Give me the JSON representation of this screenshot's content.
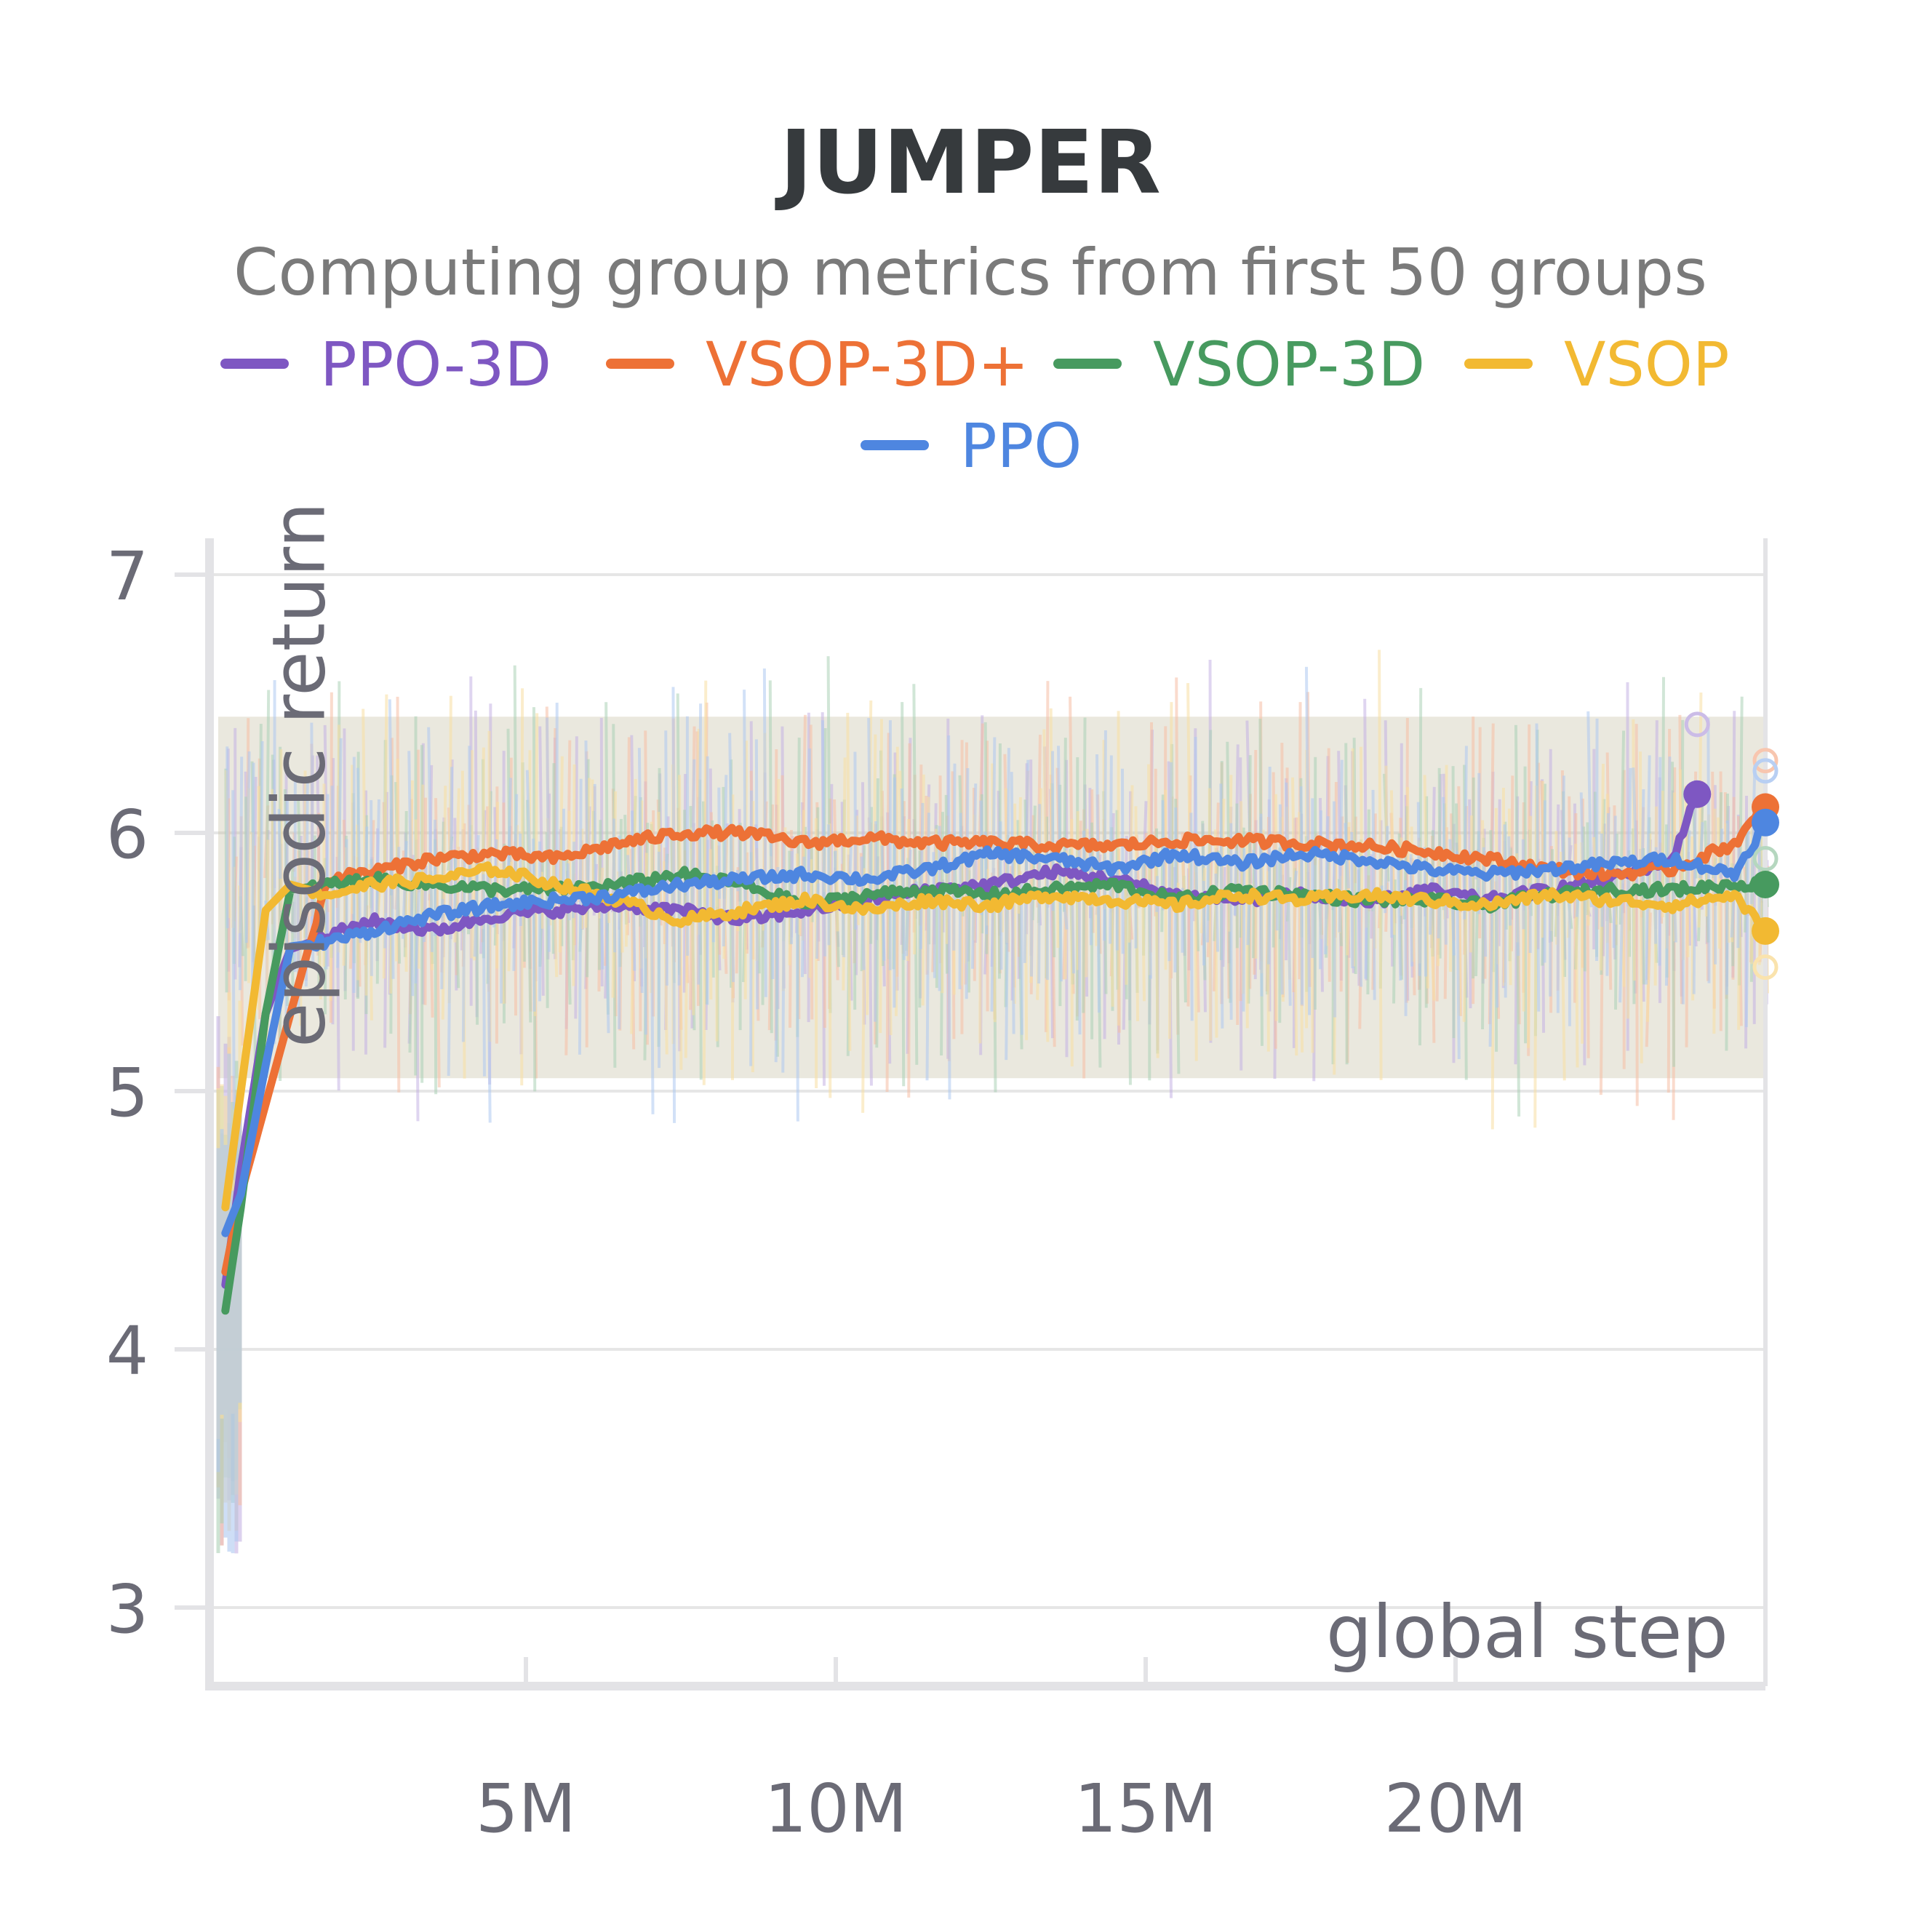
{
  "chart_data": {
    "type": "line",
    "title": "JUMPER",
    "subtitle": "Computing group metrics from first 50 groups",
    "xlabel": "global step",
    "ylabel": "episodic return",
    "xlim": [
      0,
      25000000
    ],
    "ylim": [
      2.75,
      7.15
    ],
    "x_ticks": [
      {
        "value": 5000000,
        "label": "5M"
      },
      {
        "value": 10000000,
        "label": "10M"
      },
      {
        "value": 15000000,
        "label": "15M"
      },
      {
        "value": 20000000,
        "label": "20M"
      }
    ],
    "y_ticks": [
      {
        "value": 3,
        "label": "3"
      },
      {
        "value": 4,
        "label": "4"
      },
      {
        "value": 5,
        "label": "5"
      },
      {
        "value": 6,
        "label": "6"
      },
      {
        "value": 7,
        "label": "7"
      }
    ],
    "grid": true,
    "legend_position": "top",
    "band": {
      "low": 5.05,
      "high": 6.45
    },
    "series": [
      {
        "name": "PPO-3D",
        "color": "#7e57c2",
        "x": [
          150000,
          400000,
          800000,
          1200000,
          1800000,
          2500000,
          3500000,
          4500000,
          5500000,
          6500000,
          7500000,
          8500000,
          9500000,
          10500000,
          11500000,
          12500000,
          13500000,
          14500000,
          15500000,
          16500000,
          17500000,
          18500000,
          19500000,
          20500000,
          21500000,
          22500000,
          23500000,
          23900000
        ],
        "values": [
          4.25,
          4.7,
          5.3,
          5.55,
          5.6,
          5.66,
          5.62,
          5.68,
          5.7,
          5.72,
          5.7,
          5.66,
          5.7,
          5.74,
          5.78,
          5.8,
          5.85,
          5.82,
          5.76,
          5.74,
          5.76,
          5.72,
          5.78,
          5.74,
          5.78,
          5.82,
          5.9,
          6.15
        ],
        "end_value": 6.15,
        "raw_end_value": 6.42
      },
      {
        "name": "VSOP-3D+",
        "color": "#ed7136",
        "x": [
          150000,
          400000,
          800000,
          1200000,
          1800000,
          2500000,
          3500000,
          4500000,
          5500000,
          6500000,
          7500000,
          8500000,
          9500000,
          10500000,
          11500000,
          12500000,
          13500000,
          14500000,
          15500000,
          16500000,
          17500000,
          18500000,
          19500000,
          20500000,
          21500000,
          22500000,
          23500000,
          24500000,
          25000000
        ],
        "values": [
          4.3,
          4.6,
          4.95,
          5.3,
          5.82,
          5.85,
          5.9,
          5.92,
          5.9,
          5.96,
          6.0,
          6.0,
          5.96,
          5.98,
          5.96,
          5.96,
          5.95,
          5.95,
          5.97,
          5.97,
          5.96,
          5.95,
          5.93,
          5.9,
          5.86,
          5.84,
          5.86,
          5.96,
          6.1
        ],
        "end_value": 6.1,
        "raw_end_value": 6.28
      },
      {
        "name": "VSOP-3D",
        "color": "#479a5f",
        "x": [
          150000,
          400000,
          800000,
          1200000,
          1800000,
          2500000,
          3500000,
          4500000,
          5500000,
          6500000,
          7500000,
          8500000,
          9500000,
          10500000,
          11500000,
          12500000,
          13500000,
          14500000,
          15500000,
          16500000,
          17500000,
          18500000,
          19500000,
          20500000,
          21500000,
          22500000,
          23500000,
          24500000,
          25000000
        ],
        "values": [
          4.15,
          4.55,
          5.3,
          5.78,
          5.8,
          5.82,
          5.8,
          5.78,
          5.78,
          5.8,
          5.84,
          5.8,
          5.72,
          5.76,
          5.78,
          5.76,
          5.78,
          5.8,
          5.74,
          5.78,
          5.76,
          5.74,
          5.74,
          5.72,
          5.76,
          5.78,
          5.78,
          5.8,
          5.8
        ],
        "end_value": 5.8,
        "raw_end_value": 5.9
      },
      {
        "name": "VSOP",
        "color": "#f2b932",
        "x": [
          150000,
          400000,
          800000,
          1200000,
          1800000,
          2500000,
          3500000,
          4500000,
          5500000,
          6500000,
          7500000,
          8500000,
          9500000,
          10500000,
          11500000,
          12500000,
          13500000,
          14500000,
          15500000,
          16500000,
          17500000,
          18500000,
          19500000,
          20500000,
          21500000,
          22500000,
          23500000,
          24500000,
          25000000
        ],
        "values": [
          4.55,
          5.0,
          5.7,
          5.8,
          5.76,
          5.8,
          5.82,
          5.86,
          5.8,
          5.74,
          5.66,
          5.7,
          5.74,
          5.7,
          5.74,
          5.72,
          5.76,
          5.74,
          5.72,
          5.76,
          5.74,
          5.76,
          5.74,
          5.72,
          5.76,
          5.74,
          5.72,
          5.76,
          5.62
        ],
        "end_value": 5.62,
        "raw_end_value": 5.48
      },
      {
        "name": "PPO",
        "color": "#4e86e0",
        "x": [
          150000,
          400000,
          800000,
          1200000,
          1800000,
          2500000,
          3500000,
          4500000,
          5500000,
          6500000,
          7500000,
          8500000,
          9500000,
          10500000,
          11500000,
          12500000,
          13500000,
          14500000,
          15500000,
          16500000,
          17500000,
          18500000,
          19500000,
          20500000,
          21500000,
          22500000,
          23500000,
          24500000,
          25000000
        ],
        "values": [
          4.45,
          4.6,
          5.1,
          5.56,
          5.58,
          5.62,
          5.68,
          5.72,
          5.74,
          5.76,
          5.8,
          5.82,
          5.84,
          5.82,
          5.86,
          5.92,
          5.9,
          5.86,
          5.92,
          5.88,
          5.92,
          5.9,
          5.86,
          5.84,
          5.86,
          5.88,
          5.9,
          5.84,
          6.04
        ],
        "end_value": 6.04,
        "raw_end_value": 6.24
      }
    ]
  }
}
